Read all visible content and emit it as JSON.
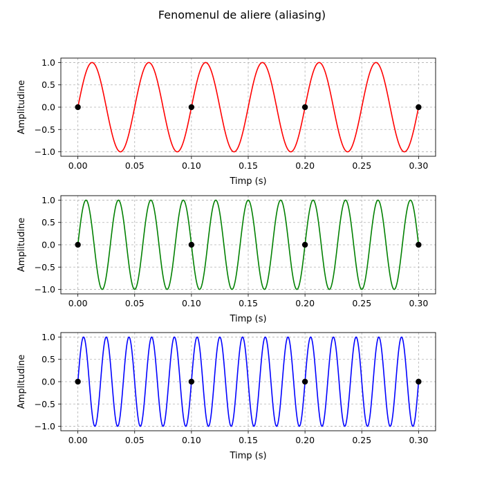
{
  "figure": {
    "suptitle": "Fenomenul de aliere (aliasing)"
  },
  "colors": {
    "sample_marker": "#000000",
    "grid": "#b0b0b0"
  },
  "chart_data": [
    {
      "type": "line",
      "xlabel": "Timp (s)",
      "ylabel": "Amplitudine",
      "xlim": [
        -0.015,
        0.315
      ],
      "ylim": [
        -1.1,
        1.1
      ],
      "xticks": [
        "0.00",
        "0.05",
        "0.10",
        "0.15",
        "0.20",
        "0.25",
        "0.30"
      ],
      "xtick_values": [
        0,
        0.05,
        0.1,
        0.15,
        0.2,
        0.25,
        0.3
      ],
      "yticks": [
        "−1.0",
        "−0.5",
        "0.0",
        "0.5",
        "1.0"
      ],
      "ytick_values": [
        -1,
        -0.5,
        0,
        0.5,
        1
      ],
      "grid": true,
      "series": [
        {
          "kind": "sine",
          "frequency_hz": 20,
          "amplitude": 1,
          "x_range": [
            0,
            0.3
          ],
          "color": "#ff0000"
        }
      ],
      "samples": {
        "x": [
          0,
          0.1,
          0.2,
          0.3
        ],
        "y": [
          0,
          0,
          0,
          0
        ],
        "color": "#000000"
      }
    },
    {
      "type": "line",
      "xlabel": "Timp (s)",
      "ylabel": "Amplitudine",
      "xlim": [
        -0.015,
        0.315
      ],
      "ylim": [
        -1.1,
        1.1
      ],
      "xticks": [
        "0.00",
        "0.05",
        "0.10",
        "0.15",
        "0.20",
        "0.25",
        "0.30"
      ],
      "xtick_values": [
        0,
        0.05,
        0.1,
        0.15,
        0.2,
        0.25,
        0.3
      ],
      "yticks": [
        "−1.0",
        "−0.5",
        "0.0",
        "0.5",
        "1.0"
      ],
      "ytick_values": [
        -1,
        -0.5,
        0,
        0.5,
        1
      ],
      "grid": true,
      "series": [
        {
          "kind": "sine",
          "frequency_hz": 35,
          "amplitude": 1,
          "x_range": [
            0,
            0.3
          ],
          "color": "#008000"
        }
      ],
      "samples": {
        "x": [
          0,
          0.1,
          0.2,
          0.3
        ],
        "y": [
          0,
          0,
          0,
          0
        ],
        "color": "#000000"
      }
    },
    {
      "type": "line",
      "xlabel": "Timp (s)",
      "ylabel": "Amplitudine",
      "xlim": [
        -0.015,
        0.315
      ],
      "ylim": [
        -1.1,
        1.1
      ],
      "xticks": [
        "0.00",
        "0.05",
        "0.10",
        "0.15",
        "0.20",
        "0.25",
        "0.30"
      ],
      "xtick_values": [
        0,
        0.05,
        0.1,
        0.15,
        0.2,
        0.25,
        0.3
      ],
      "yticks": [
        "−1.0",
        "−0.5",
        "0.0",
        "0.5",
        "1.0"
      ],
      "ytick_values": [
        -1,
        -0.5,
        0,
        0.5,
        1
      ],
      "grid": true,
      "series": [
        {
          "kind": "sine",
          "frequency_hz": 50,
          "amplitude": 1,
          "x_range": [
            0,
            0.3
          ],
          "color": "#0000ff"
        }
      ],
      "samples": {
        "x": [
          0,
          0.1,
          0.2,
          0.3
        ],
        "y": [
          0,
          0,
          0,
          0
        ],
        "color": "#000000"
      }
    }
  ]
}
